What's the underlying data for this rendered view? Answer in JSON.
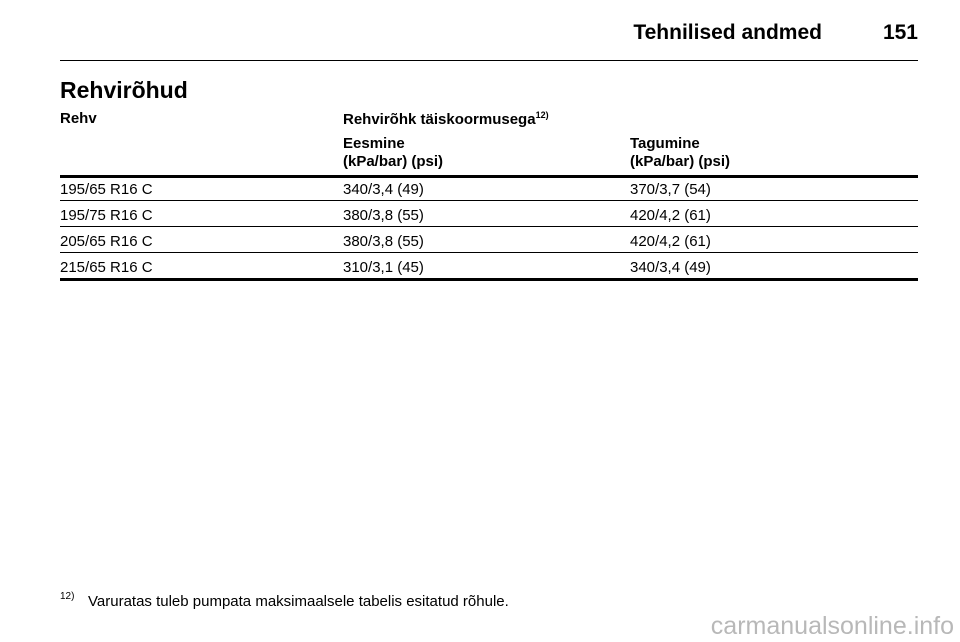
{
  "header": {
    "section": "Tehnilised andmed",
    "page": "151"
  },
  "title": "Rehvirõhud",
  "table": {
    "col_rehv": "Rehv",
    "col_pressure": "Rehvirõhk täiskoormusega",
    "col_pressure_ref": "12)",
    "sub_front": "Eesmine",
    "sub_front_unit": "(kPa/bar) (psi)",
    "sub_rear": "Tagumine",
    "sub_rear_unit": "(kPa/bar) (psi)",
    "rows": [
      [
        "195/65 R16 C",
        "340/3,4 (49)",
        "370/3,7 (54)"
      ],
      [
        "195/75 R16 C",
        "380/3,8 (55)",
        "420/4,2 (61)"
      ],
      [
        "205/65 R16 C",
        "380/3,8 (55)",
        "420/4,2 (61)"
      ],
      [
        "215/65 R16 C",
        "310/3,1 (45)",
        "340/3,4 (49)"
      ]
    ]
  },
  "footnote": {
    "marker": "12)",
    "text": "Varuratas tuleb pumpata maksimaalsele tabelis esitatud rõhule."
  },
  "watermark": "carmanualsonline.info"
}
